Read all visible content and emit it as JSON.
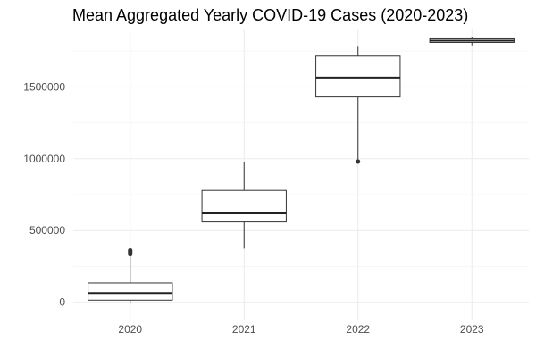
{
  "chart_data": {
    "type": "boxplot",
    "title": "Mean Aggregated Yearly COVID-19 Cases (2020-2023)",
    "xlabel": "",
    "ylabel": "",
    "ylim": [
      -120000,
      1900000
    ],
    "y_ticks": [
      0,
      500000,
      1000000,
      1500000
    ],
    "y_tick_labels": [
      "0",
      "500000",
      "1000000",
      "1500000"
    ],
    "grid": true,
    "categories": [
      "2020",
      "2021",
      "2022",
      "2023"
    ],
    "boxes": [
      {
        "category": "2020",
        "whisker_low": 0,
        "q1": 15000,
        "median": 65000,
        "q3": 135000,
        "whisker_high": 320000,
        "outliers": [
          335000,
          345000,
          355000,
          362000
        ]
      },
      {
        "category": "2021",
        "whisker_low": 375000,
        "q1": 560000,
        "median": 620000,
        "q3": 780000,
        "whisker_high": 975000,
        "outliers": []
      },
      {
        "category": "2022",
        "whisker_low": 990000,
        "q1": 1430000,
        "median": 1565000,
        "q3": 1715000,
        "whisker_high": 1780000,
        "outliers": [
          980000
        ]
      },
      {
        "category": "2023",
        "whisker_low": 1790000,
        "q1": 1810000,
        "median": 1822000,
        "q3": 1835000,
        "whisker_high": 1845000,
        "outliers": []
      }
    ]
  }
}
